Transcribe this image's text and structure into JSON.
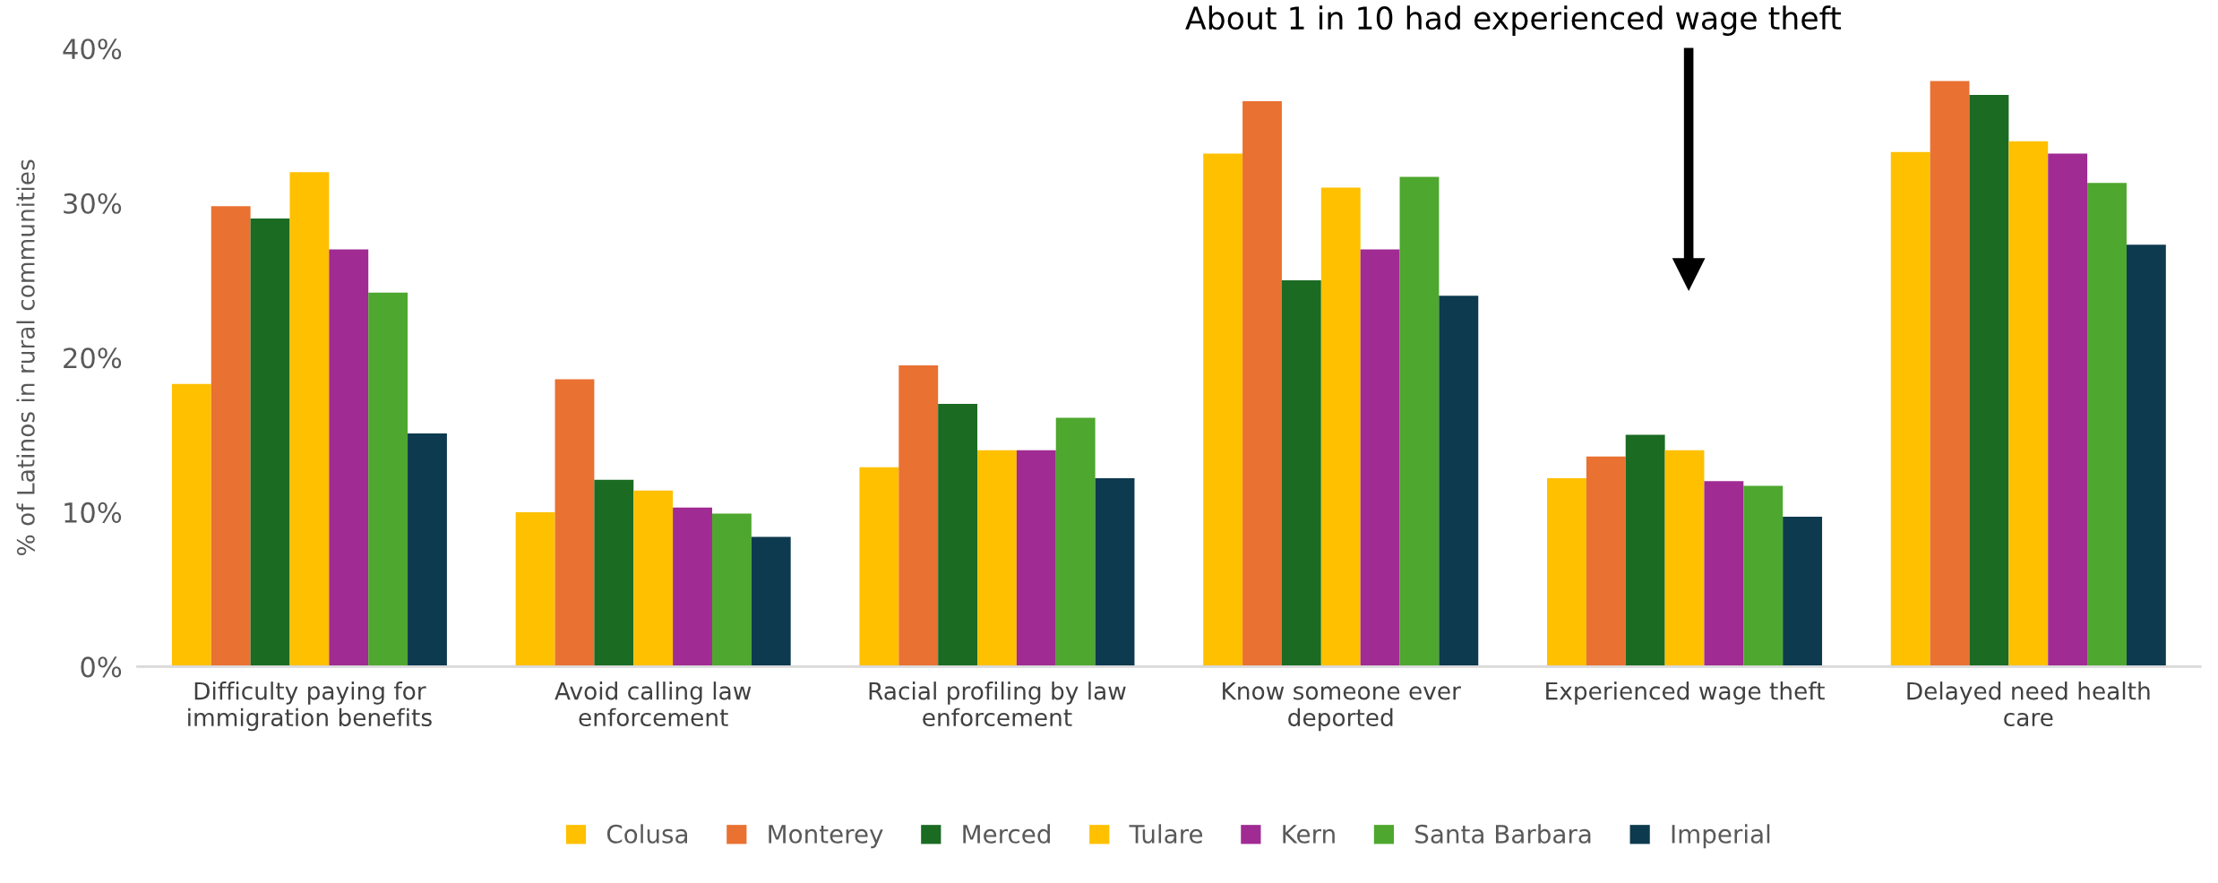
{
  "chart_data": {
    "type": "bar",
    "ylabel": "% of Latinos in rural communities",
    "categories": [
      "Difficulty paying for\nimmigration benefits",
      "Avoid calling law\nenforcement",
      "Racial profiling by law\nenforcement",
      "Know someone ever\ndeported",
      "Experienced wage theft",
      "Delayed need health\ncare"
    ],
    "series": [
      {
        "name": "Colusa",
        "color": "#ffc000",
        "values": [
          18.3,
          10,
          12.9,
          33.2,
          12.2,
          33.3
        ]
      },
      {
        "name": "Monterey",
        "color": "#e97132",
        "values": [
          29.8,
          18.6,
          19.5,
          36.6,
          13.6,
          37.9
        ]
      },
      {
        "name": "Merced",
        "color": "#1b6b23",
        "values": [
          29,
          12.1,
          17,
          25,
          15,
          37
        ]
      },
      {
        "name": "Tulare",
        "color": "#ffc000",
        "values": [
          32,
          11.4,
          14,
          31,
          14,
          34
        ]
      },
      {
        "name": "Kern",
        "color": "#a02b93",
        "values": [
          27,
          10.3,
          14,
          27,
          12,
          33.2
        ]
      },
      {
        "name": "Santa Barbara",
        "color": "#4ea72e",
        "values": [
          24.2,
          9.9,
          16.1,
          31.7,
          11.7,
          31.3
        ]
      },
      {
        "name": "Imperial",
        "color": "#0e3a4f",
        "values": [
          15.1,
          8.4,
          12.2,
          24,
          9.7,
          27.3
        ]
      }
    ],
    "ylim": [
      0,
      40
    ],
    "yticks": [
      {
        "value": 0,
        "label": "0%"
      },
      {
        "value": 10,
        "label": "10%"
      },
      {
        "value": 20,
        "label": "20%"
      },
      {
        "value": 30,
        "label": "30%"
      },
      {
        "value": 40,
        "label": "40%"
      }
    ],
    "annotations": [
      "About 1 in 10 had experienced wage theft"
    ],
    "legend": "bottom",
    "grid": false
  }
}
